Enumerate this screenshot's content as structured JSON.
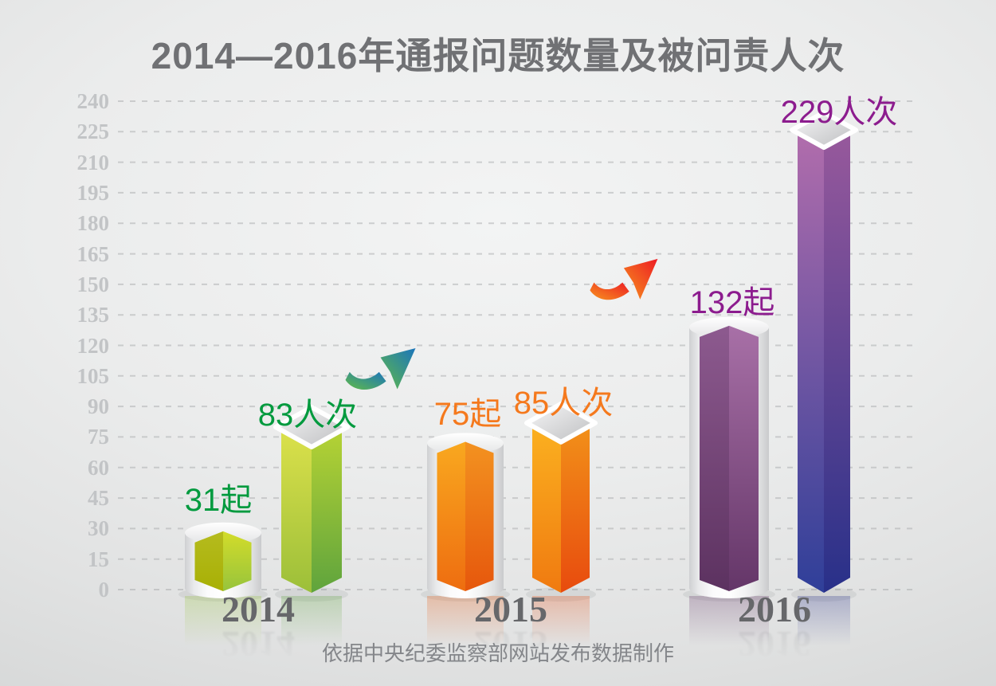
{
  "title": "2014—2016年通报问题数量及被问责人次",
  "source_note": "依据中央纪委监察部网站发布数据制作",
  "chart_data": {
    "type": "bar",
    "title": "2014—2016年通报问题数量及被问责人次",
    "categories": [
      "2014",
      "2015",
      "2016"
    ],
    "series": [
      {
        "name": "通报问题数量",
        "unit": "起",
        "values": [
          31,
          75,
          132
        ]
      },
      {
        "name": "被问责人次",
        "unit": "人次",
        "values": [
          83,
          85,
          229
        ]
      }
    ],
    "bar_labels": [
      "31起",
      "83人次",
      "75起",
      "85人次",
      "132起",
      "229人次"
    ],
    "ylim": [
      0,
      240
    ],
    "ytick_step": 15,
    "yticks": [
      0,
      15,
      30,
      45,
      60,
      75,
      90,
      105,
      120,
      135,
      150,
      165,
      180,
      195,
      210,
      225,
      240
    ],
    "grid": "horizontal-dashed",
    "legend": "none",
    "annotations": [
      "上升箭头（2014→2015之间）",
      "上升箭头（2015→2016之间）"
    ],
    "source_note": "依据中央纪委监察部网站发布数据制作"
  },
  "styles": {
    "title_color": "#707174",
    "tick_color": "#c2c4c6",
    "grid_color": "#a9abad",
    "year_color": "#66676a",
    "footer_color": "#84868a",
    "label_colors": [
      "#009a3e",
      "#009a3e",
      "#f5791d",
      "#f5791d",
      "#8c1c8e",
      "#8c1c8e"
    ],
    "bars": [
      {
        "kind": "cake",
        "lt": "#b5bb1e",
        "lb": "#a8b005",
        "rt": "#d3dc2a",
        "rb": "#97c43c"
      },
      {
        "kind": "prism",
        "lt": "#dce14b",
        "lb": "#9cbf39",
        "rt": "#b7d334",
        "rb": "#5fa43d"
      },
      {
        "kind": "cake",
        "lt": "#f9a81f",
        "lb": "#ee6d10",
        "rt": "#f39220",
        "rb": "#e6570c"
      },
      {
        "kind": "prism",
        "lt": "#fbb120",
        "lb": "#f07a10",
        "rt": "#f29119",
        "rb": "#e84b0e"
      },
      {
        "kind": "cake",
        "lt": "#8d5a8f",
        "lb": "#5c3260",
        "rt": "#a870a7",
        "rb": "#643668"
      },
      {
        "kind": "prism",
        "lt": "#b26dac",
        "lb": "#2f3f99",
        "rt": "#98599c",
        "rb": "#283089"
      }
    ],
    "arrow_gradients": [
      [
        "#62bb46",
        "#1b75bc"
      ],
      [
        "#f7941e",
        "#ed1c24"
      ]
    ]
  }
}
